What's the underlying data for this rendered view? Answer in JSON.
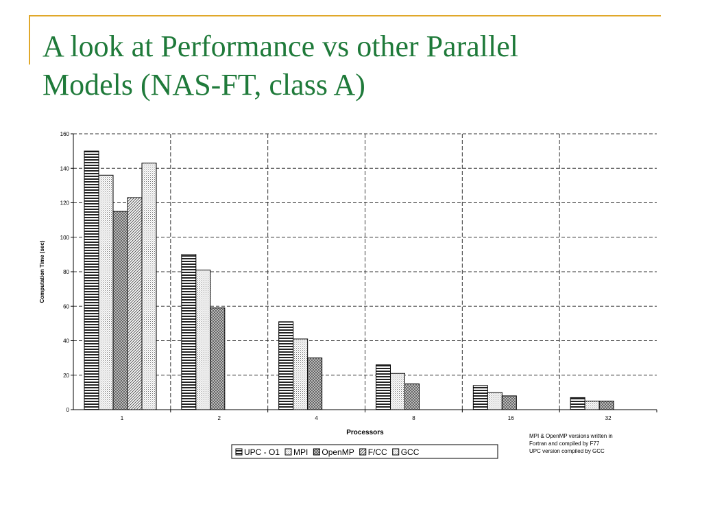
{
  "slide": {
    "title_line1": "A look at Performance vs other Parallel",
    "title_line2": "Models (NAS-FT, class A)",
    "accent_color": "#e0a82a",
    "title_color": "#1f7a3a"
  },
  "chart_data": {
    "type": "bar",
    "xlabel": "Processors",
    "ylabel": "Computation Time (sec)",
    "ylim": [
      0,
      160
    ],
    "yticks": [
      0,
      20,
      40,
      60,
      80,
      100,
      120,
      140,
      160
    ],
    "categories": [
      "1",
      "2",
      "4",
      "8",
      "16",
      "32"
    ],
    "grid": true,
    "legend_position": "bottom-center",
    "series": [
      {
        "name": "UPC - O1",
        "pattern": "horizontal-stripes",
        "values": [
          150,
          90,
          51,
          26,
          14,
          7
        ]
      },
      {
        "name": "MPI",
        "pattern": "dots",
        "values": [
          136,
          81,
          41,
          21,
          10,
          5
        ]
      },
      {
        "name": "OpenMP",
        "pattern": "crosshatch",
        "values": [
          115,
          59,
          30,
          15,
          8,
          5
        ]
      },
      {
        "name": "F/CC",
        "pattern": "diagonal",
        "values": [
          123,
          null,
          null,
          null,
          null,
          null
        ]
      },
      {
        "name": "GCC",
        "pattern": "dots",
        "values": [
          143,
          null,
          null,
          null,
          null,
          null
        ]
      }
    ],
    "annotation": [
      "MPI & OpenMP versions written in",
      "Fortran and compiled by F77",
      "UPC version compiled by GCC"
    ]
  }
}
